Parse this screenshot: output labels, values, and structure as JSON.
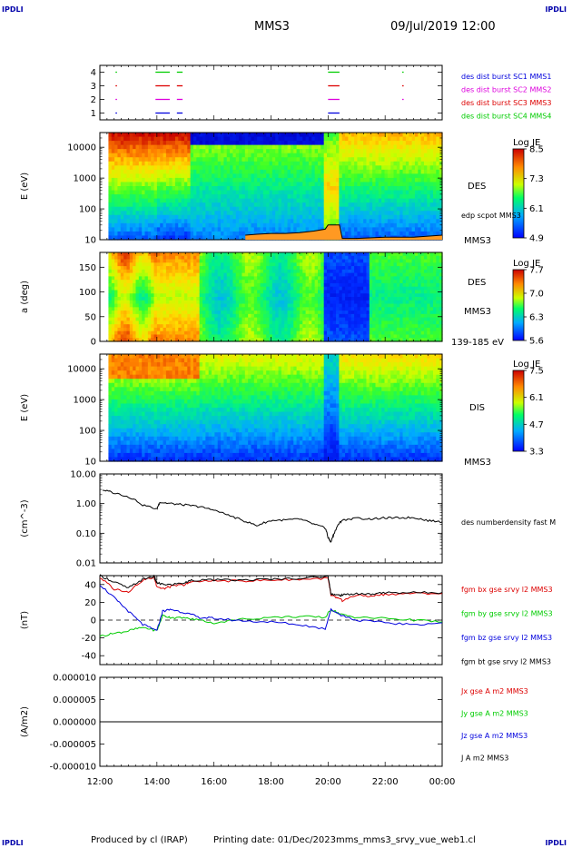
{
  "header": {
    "corner_left": "IPDLI",
    "corner_right": "IPDLI",
    "mission": "MMS3",
    "datetime": "09/Jul/2019 12:00",
    "corner_bottom_left": "IPDLI",
    "corner_bottom_right": "IPDLI"
  },
  "footer": {
    "produced_by": "Produced by cl (IRAP)",
    "printing_date": "Printing date: 01/Dec/2023",
    "file": "mms_mms3_srvy_vue_web1.cl"
  },
  "colors": {
    "black": "#000000",
    "red": "#dd0000",
    "green": "#00cc00",
    "blue": "#0000dd",
    "magenta": "#dd00dd",
    "orange": "#ff9922"
  },
  "chart_data": [
    {
      "id": "burst",
      "type": "line",
      "ylabel": "",
      "ylim": [
        0.5,
        4.5
      ],
      "yticks": [
        "1",
        "2",
        "3",
        "4"
      ],
      "legend": [
        {
          "label": "des dist burst SC1 MMS1",
          "color": "#0000dd"
        },
        {
          "label": "des dist burst SC2 MMS2",
          "color": "#dd00dd"
        },
        {
          "label": "des dist burst SC3 MMS3",
          "color": "#dd0000"
        },
        {
          "label": "des dist burst SC4 MMS4",
          "color": "#00cc00"
        }
      ],
      "intervals": [
        {
          "y": 1,
          "color": "#0000dd",
          "ranges": [
            [
              12.55,
              12.6
            ],
            [
              13.95,
              14.45
            ],
            [
              14.7,
              14.9
            ],
            [
              20.0,
              20.4
            ]
          ]
        },
        {
          "y": 2,
          "color": "#dd00dd",
          "ranges": [
            [
              12.55,
              12.6
            ],
            [
              13.95,
              14.45
            ],
            [
              14.7,
              14.9
            ],
            [
              20.0,
              20.4
            ],
            [
              22.6,
              22.65
            ]
          ]
        },
        {
          "y": 3,
          "color": "#dd0000",
          "ranges": [
            [
              12.55,
              12.6
            ],
            [
              13.95,
              14.45
            ],
            [
              14.7,
              14.9
            ],
            [
              20.0,
              20.4
            ],
            [
              22.6,
              22.65
            ]
          ]
        },
        {
          "y": 4,
          "color": "#00cc00",
          "ranges": [
            [
              12.55,
              12.6
            ],
            [
              13.95,
              14.45
            ],
            [
              14.7,
              14.9
            ],
            [
              20.0,
              20.4
            ],
            [
              22.6,
              22.65
            ]
          ]
        }
      ]
    },
    {
      "id": "des_energy",
      "type": "heatmap",
      "ylabel": "E (eV)",
      "yscale": "log",
      "ylim": [
        10,
        30000
      ],
      "yticks": [
        "10",
        "100",
        "1000",
        "10000"
      ],
      "labels": [
        "DES",
        "MMS3"
      ],
      "colorbar": {
        "title": "Log JE",
        "ticks": [
          "8.5",
          "7.3",
          "6.1",
          "4.9"
        ],
        "range": [
          4.9,
          8.5
        ]
      },
      "overlay": {
        "name": "edp scpot MMS3",
        "color": "#000000",
        "fill": "#ff9922",
        "x": [
          17.1,
          17.5,
          18.0,
          18.5,
          19.0,
          19.5,
          19.9,
          20.0,
          20.4,
          20.5,
          21.0,
          22.0,
          23.0,
          24.0
        ],
        "y": [
          14,
          15,
          16,
          16,
          17,
          19,
          22,
          30,
          30,
          11,
          11,
          12,
          12,
          14
        ]
      }
    },
    {
      "id": "des_pitch",
      "type": "heatmap",
      "ylabel": "a (deg)",
      "ylim": [
        0,
        180
      ],
      "yticks": [
        "0",
        "50",
        "100",
        "150"
      ],
      "labels": [
        "DES",
        "MMS3",
        "139-185 eV"
      ],
      "colorbar": {
        "title": "Log JE",
        "ticks": [
          "7.7",
          "7.0",
          "6.3",
          "5.6"
        ],
        "range": [
          5.6,
          7.7
        ]
      }
    },
    {
      "id": "dis_energy",
      "type": "heatmap",
      "ylabel": "E (eV)",
      "yscale": "log",
      "ylim": [
        10,
        30000
      ],
      "yticks": [
        "10",
        "100",
        "1000",
        "10000"
      ],
      "labels": [
        "DIS",
        "MMS3"
      ],
      "colorbar": {
        "title": "Log JE",
        "ticks": [
          "7.5",
          "6.1",
          "4.7",
          "3.3"
        ],
        "range": [
          3.3,
          7.5
        ]
      }
    },
    {
      "id": "density",
      "type": "line",
      "ylabel": "(cm^-3)",
      "yscale": "log",
      "ylim": [
        0.01,
        10
      ],
      "yticks": [
        "0.01",
        "0.10",
        "1.00",
        "10.00"
      ],
      "series": [
        {
          "name": "des numberdensity fast M",
          "color": "#000000",
          "x": [
            12.1,
            12.5,
            13.0,
            13.5,
            14.0,
            14.1,
            14.5,
            15.0,
            15.5,
            16.0,
            16.5,
            17.0,
            17.5,
            18.0,
            18.5,
            19.0,
            19.5,
            19.9,
            20.0,
            20.1,
            20.2,
            20.4,
            20.5,
            21.0,
            21.5,
            22.0,
            22.5,
            23.0,
            23.5,
            24.0
          ],
          "y": [
            2.9,
            2.3,
            1.7,
            0.9,
            0.65,
            1.1,
            1.0,
            0.9,
            0.78,
            0.6,
            0.4,
            0.27,
            0.18,
            0.27,
            0.28,
            0.3,
            0.2,
            0.15,
            0.07,
            0.05,
            0.09,
            0.22,
            0.28,
            0.32,
            0.3,
            0.33,
            0.33,
            0.34,
            0.27,
            0.24
          ]
        }
      ]
    },
    {
      "id": "bfield",
      "type": "line",
      "ylabel": "(nT)",
      "ylim": [
        -50,
        50
      ],
      "yticks": [
        "-40",
        "-20",
        "0",
        "20",
        "40"
      ],
      "zero_line": true,
      "series": [
        {
          "name": "fgm bx gse srvy l2 MMS3",
          "color": "#dd0000",
          "x": [
            12.0,
            12.5,
            13.0,
            13.5,
            13.9,
            14.0,
            14.2,
            14.5,
            15.0,
            15.2,
            16.0,
            17.0,
            18.0,
            19.0,
            20.0,
            20.1,
            20.3,
            20.5,
            21.0,
            21.5,
            22.0,
            23.0,
            24.0
          ],
          "y": [
            48,
            35,
            32,
            45,
            48,
            38,
            35,
            38,
            40,
            43,
            44,
            44,
            45,
            46,
            47,
            28,
            25,
            22,
            28,
            27,
            29,
            30,
            30
          ]
        },
        {
          "name": "fgm by gse srvy l2 MMS3",
          "color": "#00cc00",
          "x": [
            12.0,
            12.5,
            13.0,
            13.5,
            14.0,
            14.2,
            14.5,
            15.0,
            15.5,
            16.0,
            17.0,
            18.0,
            19.0,
            19.9,
            20.1,
            20.5,
            21.0,
            22.0,
            23.0,
            24.0
          ],
          "y": [
            -18,
            -15,
            -12,
            -8,
            -12,
            5,
            3,
            2,
            0,
            -3,
            1,
            3,
            4,
            3,
            12,
            6,
            3,
            2,
            0,
            -2
          ]
        },
        {
          "name": "fgm bz gse srvy l2 MMS3",
          "color": "#0000dd",
          "x": [
            12.0,
            12.5,
            13.0,
            13.5,
            14.0,
            14.2,
            14.5,
            15.0,
            15.5,
            16.0,
            17.0,
            18.0,
            19.0,
            19.9,
            20.1,
            20.5,
            21.0,
            22.0,
            23.0,
            24.0
          ],
          "y": [
            40,
            25,
            10,
            -5,
            -12,
            10,
            12,
            8,
            3,
            2,
            -1,
            -2,
            -5,
            -10,
            12,
            5,
            0,
            -3,
            -5,
            -3
          ]
        },
        {
          "name": "fgm bt gse srvy l2 MMS3",
          "color": "#000000",
          "x": [
            12.0,
            12.5,
            13.0,
            13.5,
            13.9,
            14.0,
            14.2,
            14.5,
            15.0,
            15.2,
            16.0,
            17.0,
            18.0,
            19.0,
            20.0,
            20.1,
            20.3,
            20.5,
            21.0,
            21.5,
            22.0,
            23.0,
            24.0
          ],
          "y": [
            50,
            43,
            36,
            46,
            49,
            42,
            40,
            40,
            42,
            45,
            45,
            45,
            46,
            47,
            49,
            30,
            28,
            28,
            30,
            29,
            31,
            31,
            31
          ]
        }
      ]
    },
    {
      "id": "current",
      "type": "line",
      "ylabel": "(A/m2)",
      "ylim": [
        -1e-05,
        1e-05
      ],
      "yticks": [
        "-0.000010",
        "-0.000005",
        "0.000000",
        "0.000005",
        "0.000010"
      ],
      "series": [
        {
          "name": "Jx gse A m2 MMS3",
          "color": "#dd0000",
          "x": [
            12.0,
            24.0
          ],
          "y": [
            0,
            0
          ]
        },
        {
          "name": "Jy gse A m2 MMS3",
          "color": "#00cc00",
          "x": [
            12.0,
            24.0
          ],
          "y": [
            0,
            0
          ]
        },
        {
          "name": "Jz gse A m2 MMS3",
          "color": "#0000dd",
          "x": [
            12.0,
            24.0
          ],
          "y": [
            0,
            0
          ]
        },
        {
          "name": "J A m2 MMS3",
          "color": "#000000",
          "x": [
            12.0,
            24.0
          ],
          "y": [
            0,
            0
          ]
        }
      ]
    }
  ],
  "time_axis": {
    "xlim": [
      12,
      24
    ],
    "ticks": [
      "12:00",
      "14:00",
      "16:00",
      "18:00",
      "20:00",
      "22:00",
      "00:00"
    ]
  }
}
